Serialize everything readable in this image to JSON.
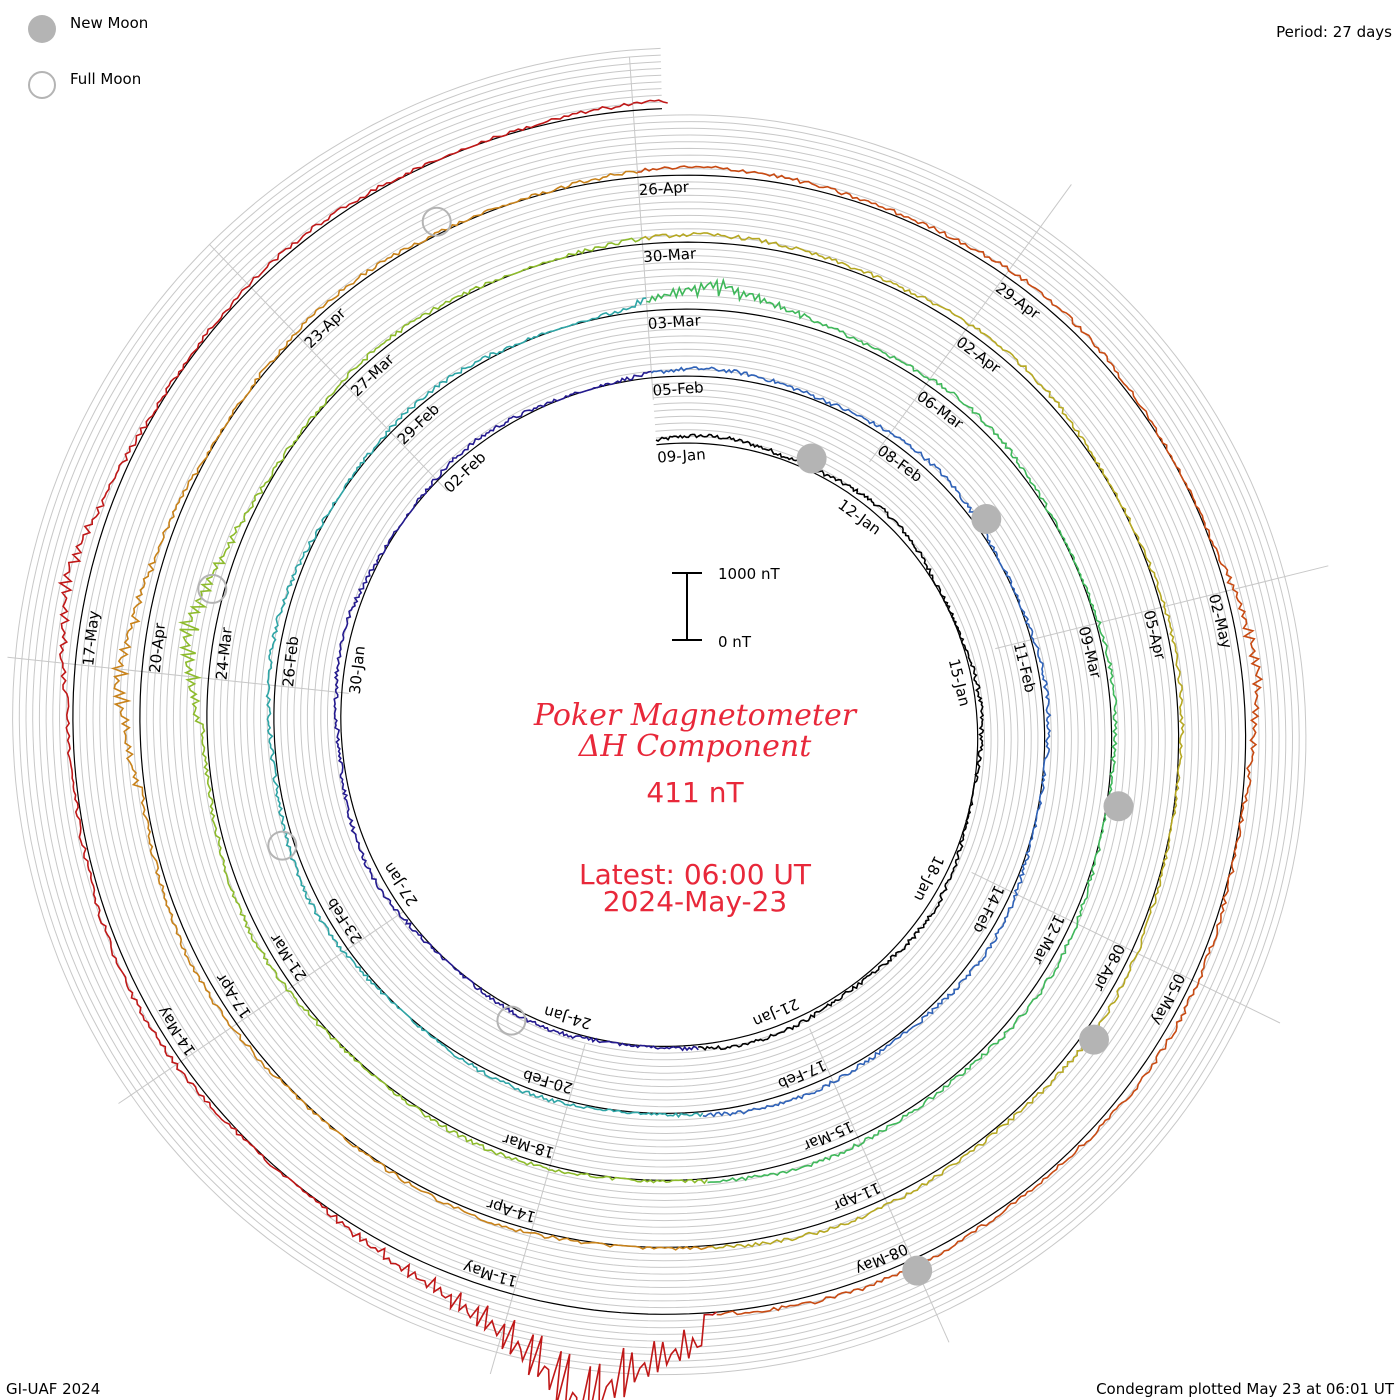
{
  "legend": {
    "new_moon_label": "New Moon",
    "full_moon_label": "Full Moon",
    "new_moon_icon": "filled-gray-circle",
    "full_moon_icon": "open-gray-circle"
  },
  "period_label": "Period: 27 days",
  "title_line1": "Poker Magnetometer",
  "title_line2": "ΔH Component",
  "scale_value": "411 nT",
  "latest_line1": "Latest: 06:00 UT",
  "latest_line2": "2024-May-23",
  "credit_left": "GI-UAF 2024",
  "credit_right": "Condegram plotted May 23 at 06:01 UT",
  "scale_bar": {
    "top_label": "1000 nT",
    "bottom_label": "0 nT",
    "top_value": 1000,
    "bottom_value": 0
  },
  "colors": {
    "title": "#e8283a",
    "moon_gray": "#b4b4b4",
    "grid": "#c8c8c8",
    "turns": [
      "#000000",
      "#241a8f",
      "#2f62b8",
      "#2ea5a6",
      "#3fb85a",
      "#8dbb2c",
      "#b6a822",
      "#c8821a",
      "#c84a12",
      "#c01818"
    ]
  },
  "chart_data": {
    "type": "condegram-spiral",
    "title": "Poker Magnetometer ΔH Component",
    "period_days": 27,
    "scale_nT": 411,
    "date_labels": [
      {
        "date": "09-Jan",
        "turn": 0,
        "day": 0
      },
      {
        "date": "12-Jan",
        "turn": 0,
        "day": 3
      },
      {
        "date": "15-Jan",
        "turn": 0,
        "day": 6
      },
      {
        "date": "18-Jan",
        "turn": 0,
        "day": 9
      },
      {
        "date": "21-Jan",
        "turn": 0,
        "day": 12
      },
      {
        "date": "24-Jan",
        "turn": 0,
        "day": 15
      },
      {
        "date": "27-Jan",
        "turn": 0,
        "day": 18
      },
      {
        "date": "30-Jan",
        "turn": 0,
        "day": 21
      },
      {
        "date": "02-Feb",
        "turn": 0,
        "day": 24
      },
      {
        "date": "05-Feb",
        "turn": 1,
        "day": 0
      },
      {
        "date": "08-Feb",
        "turn": 1,
        "day": 3
      },
      {
        "date": "11-Feb",
        "turn": 1,
        "day": 6
      },
      {
        "date": "14-Feb",
        "turn": 1,
        "day": 9
      },
      {
        "date": "17-Feb",
        "turn": 1,
        "day": 12
      },
      {
        "date": "20-Feb",
        "turn": 1,
        "day": 15
      },
      {
        "date": "23-Feb",
        "turn": 1,
        "day": 18
      },
      {
        "date": "26-Feb",
        "turn": 1,
        "day": 21
      },
      {
        "date": "29-Feb",
        "turn": 1,
        "day": 24
      },
      {
        "date": "03-Mar",
        "turn": 2,
        "day": 0
      },
      {
        "date": "06-Mar",
        "turn": 2,
        "day": 3
      },
      {
        "date": "09-Mar",
        "turn": 2,
        "day": 6
      },
      {
        "date": "12-Mar",
        "turn": 2,
        "day": 9
      },
      {
        "date": "15-Mar",
        "turn": 2,
        "day": 12
      },
      {
        "date": "18-Mar",
        "turn": 2,
        "day": 15
      },
      {
        "date": "21-Mar",
        "turn": 2,
        "day": 18
      },
      {
        "date": "24-Mar",
        "turn": 2,
        "day": 21
      },
      {
        "date": "27-Mar",
        "turn": 2,
        "day": 24
      },
      {
        "date": "30-Mar",
        "turn": 3,
        "day": 0
      },
      {
        "date": "02-Apr",
        "turn": 3,
        "day": 3
      },
      {
        "date": "05-Apr",
        "turn": 3,
        "day": 6
      },
      {
        "date": "08-Apr",
        "turn": 3,
        "day": 9
      },
      {
        "date": "11-Apr",
        "turn": 3,
        "day": 12
      },
      {
        "date": "14-Apr",
        "turn": 3,
        "day": 15
      },
      {
        "date": "17-Apr",
        "turn": 3,
        "day": 18
      },
      {
        "date": "20-Apr",
        "turn": 3,
        "day": 21
      },
      {
        "date": "23-Apr",
        "turn": 3,
        "day": 24
      },
      {
        "date": "26-Apr",
        "turn": 4,
        "day": 0
      },
      {
        "date": "29-Apr",
        "turn": 4,
        "day": 3
      },
      {
        "date": "02-May",
        "turn": 4,
        "day": 6
      },
      {
        "date": "05-May",
        "turn": 4,
        "day": 9
      },
      {
        "date": "08-May",
        "turn": 4,
        "day": 12
      },
      {
        "date": "11-May",
        "turn": 4,
        "day": 15
      },
      {
        "date": "14-May",
        "turn": 4,
        "day": 18
      },
      {
        "date": "17-May",
        "turn": 4,
        "day": 21
      }
    ],
    "new_moons": [
      {
        "turn": 0,
        "day": 2.3
      },
      {
        "turn": 1,
        "day": 4.5
      },
      {
        "turn": 2,
        "day": 7.8
      },
      {
        "turn": 3,
        "day": 9.8
      },
      {
        "turn": 4,
        "day": 12.0
      }
    ],
    "full_moons": [
      {
        "turn": 0,
        "day": 16.0
      },
      {
        "turn": 1,
        "day": 19.3
      },
      {
        "turn": 2,
        "day": 21.8
      },
      {
        "turn": 3,
        "day": 25.4
      }
    ],
    "storms": [
      {
        "date": "2024-05-10",
        "turn": 4,
        "day": 14.0,
        "peak_nT": 1900
      },
      {
        "date": "2024-03-24",
        "turn": 2,
        "day": 21.0,
        "peak_nT": 420
      },
      {
        "date": "2024-03-03",
        "turn": 2,
        "day": 0.3,
        "peak_nT": 360
      },
      {
        "date": "2024-04-19",
        "turn": 3,
        "day": 20.5,
        "peak_nT": 350
      },
      {
        "date": "2024-05-02",
        "turn": 4,
        "day": 6.2,
        "peak_nT": 250
      },
      {
        "date": "2024-05-17",
        "turn": 4,
        "day": 21.2,
        "peak_nT": 300
      }
    ],
    "latest": "2024-May-23 06:00 UT"
  }
}
